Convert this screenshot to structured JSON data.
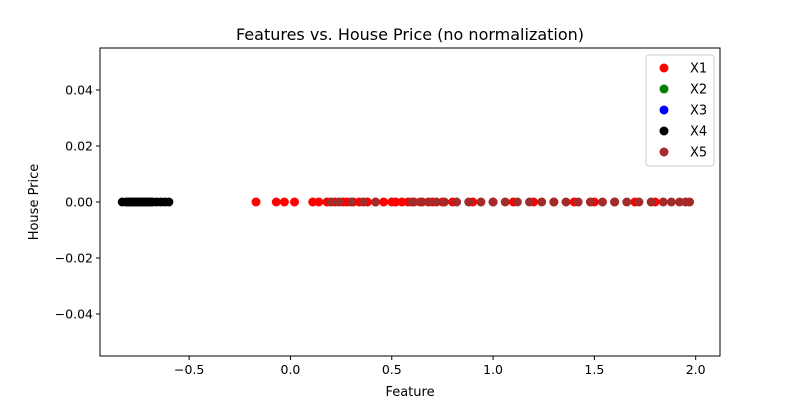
{
  "chart_data": {
    "type": "scatter",
    "title": "Features vs. House Price (no normalization)",
    "xlabel": "Feature",
    "ylabel": "House Price",
    "xlim": [
      -0.94,
      2.12
    ],
    "ylim": [
      -0.055,
      0.055
    ],
    "x_ticks": [
      -0.5,
      0.0,
      0.5,
      1.0,
      1.5,
      2.0
    ],
    "x_tick_labels": [
      "−0.5",
      "0.0",
      "0.5",
      "1.0",
      "1.5",
      "2.0"
    ],
    "y_ticks": [
      -0.04,
      -0.02,
      0.0,
      0.02,
      0.04
    ],
    "y_tick_labels": [
      "−0.04",
      "−0.02",
      "0.00",
      "0.02",
      "0.04"
    ],
    "grid": false,
    "legend_position": "top-right",
    "series": [
      {
        "name": "X1",
        "color": "#ff0000",
        "x": [
          -0.17,
          -0.07,
          -0.03,
          0.02,
          0.11,
          0.14,
          0.18,
          0.22,
          0.26,
          0.28,
          0.31,
          0.34,
          0.38,
          0.42,
          0.46,
          0.5,
          0.52,
          0.55,
          0.58,
          0.61,
          0.65,
          0.7,
          0.75,
          0.8,
          0.9,
          1.0,
          1.1,
          1.2,
          1.3,
          1.4,
          1.5,
          1.6,
          1.7,
          1.8
        ],
        "y": [
          0,
          0,
          0,
          0,
          0,
          0,
          0,
          0,
          0,
          0,
          0,
          0,
          0,
          0,
          0,
          0,
          0,
          0,
          0,
          0,
          0,
          0,
          0,
          0,
          0,
          0,
          0,
          0,
          0,
          0,
          0,
          0,
          0,
          0
        ]
      },
      {
        "name": "X2",
        "color": "#008000",
        "x": [],
        "y": []
      },
      {
        "name": "X3",
        "color": "#0000ff",
        "x": [],
        "y": []
      },
      {
        "name": "X4",
        "color": "#000000",
        "x": [
          -0.83,
          -0.81,
          -0.8,
          -0.79,
          -0.78,
          -0.77,
          -0.76,
          -0.75,
          -0.74,
          -0.73,
          -0.72,
          -0.71,
          -0.7,
          -0.69,
          -0.68,
          -0.66,
          -0.64,
          -0.62,
          -0.6
        ],
        "y": [
          0,
          0,
          0,
          0,
          0,
          0,
          0,
          0,
          0,
          0,
          0,
          0,
          0,
          0,
          0,
          0,
          0,
          0,
          0
        ]
      },
      {
        "name": "X5",
        "color": "#a52a2a",
        "x": [
          0.2,
          0.24,
          0.3,
          0.36,
          0.42,
          0.6,
          0.64,
          0.68,
          0.72,
          0.76,
          0.82,
          0.88,
          0.94,
          1.0,
          1.06,
          1.12,
          1.18,
          1.24,
          1.3,
          1.36,
          1.42,
          1.48,
          1.54,
          1.6,
          1.66,
          1.72,
          1.78,
          1.84,
          1.88,
          1.92,
          1.95,
          1.97
        ],
        "y": [
          0,
          0,
          0,
          0,
          0,
          0,
          0,
          0,
          0,
          0,
          0,
          0,
          0,
          0,
          0,
          0,
          0,
          0,
          0,
          0,
          0,
          0,
          0,
          0,
          0,
          0,
          0,
          0,
          0,
          0,
          0,
          0
        ]
      }
    ]
  }
}
